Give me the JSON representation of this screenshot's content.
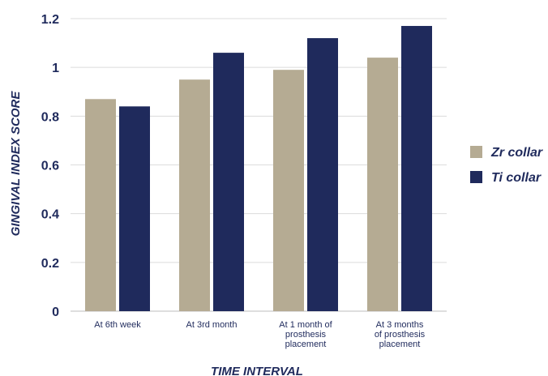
{
  "chart_data": {
    "type": "bar",
    "categories": [
      [
        "At 6th week"
      ],
      [
        "At 3rd month"
      ],
      [
        "At 1 month of",
        "prosthesis",
        "placement"
      ],
      [
        "At 3 months",
        "of prosthesis",
        "placement"
      ]
    ],
    "series": [
      {
        "name": "Zr collar",
        "values": [
          0.87,
          0.95,
          0.99,
          1.04
        ],
        "color": "#b5ab93"
      },
      {
        "name": "Ti collar",
        "values": [
          0.84,
          1.06,
          1.12,
          1.17
        ],
        "color": "#1f2a5c"
      }
    ],
    "title": "",
    "xlabel": "TIME INTERVAL",
    "ylabel": "GINGIVAL INDEX SCORE",
    "ylim": [
      0,
      1.2
    ],
    "yticks": [
      "0",
      "0.2",
      "0.4",
      "0.6",
      "0.8",
      "1",
      "1.2"
    ],
    "grid": true,
    "legend": "right"
  }
}
